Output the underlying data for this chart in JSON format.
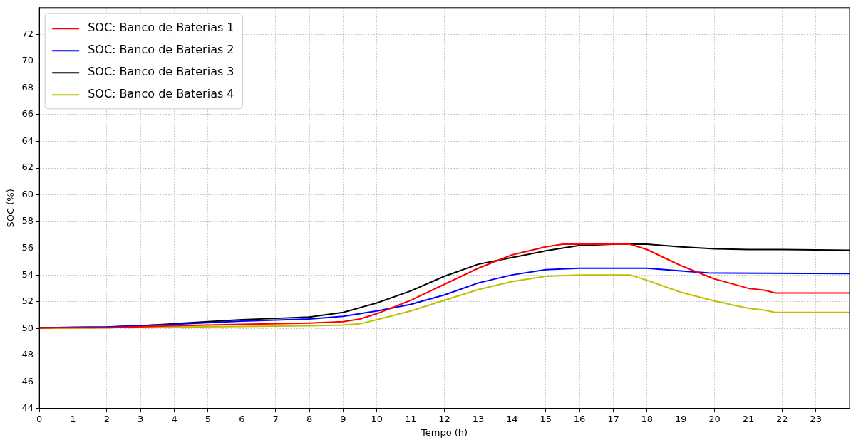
{
  "chart_data": {
    "type": "line",
    "xlabel": "Tempo (h)",
    "ylabel": "SOC (%)",
    "xlim": [
      0,
      24
    ],
    "xticks": [
      0,
      1,
      2,
      3,
      4,
      5,
      6,
      7,
      8,
      9,
      10,
      11,
      12,
      13,
      14,
      15,
      16,
      17,
      18,
      19,
      20,
      21,
      22,
      23
    ],
    "ylim": [
      44,
      74
    ],
    "yticks": [
      44,
      46,
      48,
      50,
      52,
      54,
      56,
      58,
      60,
      62,
      64,
      66,
      68,
      70,
      72
    ],
    "grid": true,
    "legend": "top left",
    "marker": "none",
    "line_style": "solid",
    "series": [
      {
        "name": "SOC: Banco de Baterias 1",
        "color": "#ff0000",
        "x": [
          0,
          2,
          4,
          6,
          8,
          9,
          9.5,
          10,
          11,
          12,
          13,
          14,
          15,
          15.5,
          17.5,
          18,
          19,
          20,
          21,
          21.5,
          21.8,
          24
        ],
        "values": [
          50.05,
          50.05,
          50.2,
          50.3,
          50.4,
          50.5,
          50.7,
          51.1,
          52.1,
          53.3,
          54.5,
          55.5,
          56.1,
          56.3,
          56.3,
          55.9,
          54.7,
          53.7,
          53.0,
          52.85,
          52.65,
          52.65
        ]
      },
      {
        "name": "SOC: Banco de Baterias 2",
        "color": "#0000ff",
        "x": [
          0,
          2,
          4,
          6,
          8,
          9,
          10,
          11,
          12,
          13,
          14,
          15,
          16,
          18,
          19,
          19.8,
          24
        ],
        "values": [
          50.05,
          50.1,
          50.3,
          50.55,
          50.7,
          50.9,
          51.3,
          51.8,
          52.5,
          53.4,
          54.0,
          54.4,
          54.5,
          54.5,
          54.3,
          54.15,
          54.1
        ]
      },
      {
        "name": "SOC: Banco de Baterias 3",
        "color": "#000000",
        "x": [
          0,
          2,
          3,
          4,
          5,
          6,
          7,
          8,
          9,
          10,
          11,
          12,
          13,
          14,
          15,
          16,
          17,
          18,
          19,
          20,
          21,
          22,
          24
        ],
        "values": [
          50.05,
          50.1,
          50.2,
          50.35,
          50.5,
          50.65,
          50.75,
          50.85,
          51.2,
          51.9,
          52.8,
          53.9,
          54.8,
          55.3,
          55.8,
          56.2,
          56.3,
          56.3,
          56.1,
          55.95,
          55.9,
          55.9,
          55.85
        ]
      },
      {
        "name": "SOC: Banco de Baterias 4",
        "color": "#bfbf00",
        "x": [
          0,
          2,
          4,
          6,
          8,
          9,
          9.5,
          10,
          11,
          12,
          13,
          14,
          15,
          16,
          17.5,
          18,
          19,
          20,
          21,
          21.5,
          21.8,
          24
        ],
        "values": [
          50.0,
          50.05,
          50.1,
          50.15,
          50.2,
          50.25,
          50.35,
          50.65,
          51.3,
          52.1,
          52.9,
          53.5,
          53.9,
          54.0,
          54.0,
          53.6,
          52.7,
          52.05,
          51.5,
          51.35,
          51.2,
          51.2
        ]
      }
    ]
  }
}
